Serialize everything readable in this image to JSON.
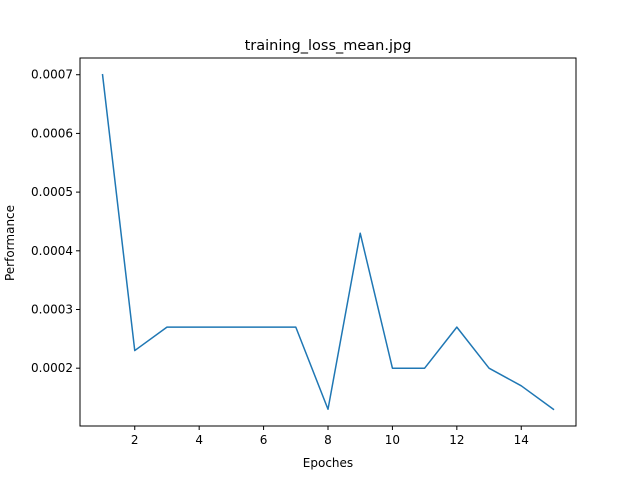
{
  "chart_data": {
    "type": "line",
    "title": "training_loss_mean.jpg",
    "xlabel": "Epoches",
    "ylabel": "Performance",
    "xlim": [
      0.3,
      15.7
    ],
    "ylim": [
      0.0001015,
      0.0007285
    ],
    "xticks": [
      2,
      4,
      6,
      8,
      10,
      12,
      14
    ],
    "xtick_labels": [
      "2",
      "4",
      "6",
      "8",
      "10",
      "12",
      "14"
    ],
    "yticks": [
      0.0002,
      0.0003,
      0.0004,
      0.0005,
      0.0006,
      0.0007
    ],
    "ytick_labels": [
      "0.0002",
      "0.0003",
      "0.0004",
      "0.0005",
      "0.0006",
      "0.0007"
    ],
    "grid": false,
    "series": [
      {
        "color": "#1f77b4",
        "x": [
          1,
          2,
          3,
          4,
          5,
          6,
          7,
          8,
          9,
          10,
          11,
          12,
          13,
          14,
          15
        ],
        "y": [
          0.0007,
          0.00023,
          0.00027,
          0.00027,
          0.00027,
          0.00027,
          0.00027,
          0.00013,
          0.00043,
          0.0002,
          0.0002,
          0.00027,
          0.0002,
          0.00017,
          0.00013
        ]
      }
    ]
  }
}
